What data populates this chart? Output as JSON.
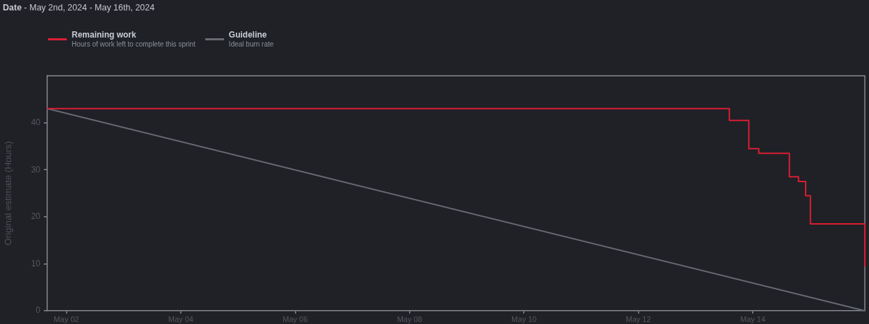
{
  "chart_data": {
    "type": "line",
    "title": "Date",
    "subtitle": "- May 2nd, 2024 - May 16th, 2024",
    "ylabel": "Original estimate (Hours)",
    "legend": "top left",
    "annotations": [
      "Hours of work left to complete this sprint",
      "Ideal burn rate"
    ],
    "xlim": [
      "2024-05-01T16:00",
      "2024-05-15T23:00"
    ],
    "xticks": [
      {
        "value": "2024-05-02",
        "label": "May 02"
      },
      {
        "value": "2024-05-04",
        "label": "May 04"
      },
      {
        "value": "2024-05-06",
        "label": "May 06"
      },
      {
        "value": "2024-05-08",
        "label": "May 08"
      },
      {
        "value": "2024-05-10",
        "label": "May 10"
      },
      {
        "value": "2024-05-12",
        "label": "May 12"
      },
      {
        "value": "2024-05-14",
        "label": "May 14"
      }
    ],
    "ylim": [
      0,
      50
    ],
    "yticks": [
      0,
      10,
      20,
      30,
      40
    ],
    "series": [
      {
        "name": "Remaining work",
        "type": "step",
        "color": "#dc1e32",
        "x": [
          "2024-05-01T16:00",
          "2024-05-13T14:10",
          "2024-05-13T22:20",
          "2024-05-14T02:30",
          "2024-05-14T15:20",
          "2024-05-14T19:10",
          "2024-05-14T22:10",
          "2024-05-15T00:10",
          "2024-05-15T23:00"
        ],
        "values": [
          43,
          40.5,
          34.5,
          33.5,
          28.5,
          27.5,
          24.5,
          18.5,
          9.5
        ]
      },
      {
        "name": "Guideline",
        "type": "line",
        "color": "#676a71",
        "x": [
          "2024-05-01T16:00",
          "2024-05-15T23:00"
        ],
        "values": [
          43,
          0
        ]
      }
    ]
  }
}
